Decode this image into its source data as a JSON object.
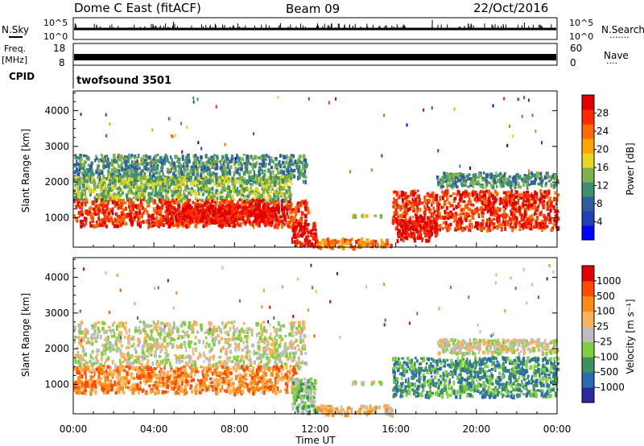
{
  "header": {
    "station": "Dome C East (fitACF)",
    "beam": "Beam 09",
    "date": "22/Oct/2016"
  },
  "top_panels": {
    "sky": {
      "label": "N.Sky",
      "ticks_left": [
        "10^5",
        "10^0"
      ],
      "ticks_right": [
        "10^5",
        "10^0"
      ],
      "right_label": "N.Search",
      "right_marker": "·······"
    },
    "freq": {
      "label_line1": "Freq.",
      "label_line2": "[MHz]",
      "ticks_left": [
        "18",
        "8"
      ],
      "ticks_right": [
        "60",
        "0"
      ],
      "right_label": "Nave",
      "right_marker": "····"
    },
    "cpid": {
      "label": "CPID",
      "value": "twofsound 3501"
    }
  },
  "chart_data": [
    {
      "type": "heatmap",
      "name": "power",
      "ylabel": "Slant Range [km]",
      "yticks": [
        "4000",
        "3000",
        "2000",
        "1000"
      ],
      "ylim": [
        180,
        4550
      ],
      "colorbar": {
        "label": "Power [dB]",
        "ticks": [
          "28",
          "24",
          "20",
          "16",
          "12",
          "8",
          "4"
        ],
        "range": [
          0,
          32
        ],
        "colors": [
          "#0000ff",
          "#1f3fb7",
          "#2f5ea0",
          "#3f8f6f",
          "#7fb24f",
          "#e6d81f",
          "#ffa500",
          "#ff6a00",
          "#ff2a00",
          "#e00000"
        ]
      },
      "regions": [
        {
          "t": [
            0.0,
            11.5
          ],
          "r": [
            2050,
            2800
          ],
          "level": 3
        },
        {
          "t": [
            0.0,
            10.8
          ],
          "r": [
            1500,
            2200
          ],
          "level": 4
        },
        {
          "t": [
            0.0,
            11.6
          ],
          "r": [
            800,
            1550
          ],
          "level": 8
        },
        {
          "t": [
            4.5,
            10.5
          ],
          "r": [
            900,
            1400
          ],
          "level": 9
        },
        {
          "t": [
            10.8,
            12.0
          ],
          "r": [
            250,
            900
          ],
          "level": 9
        },
        {
          "t": [
            12.0,
            15.8
          ],
          "r": [
            200,
            450
          ],
          "level": 7
        },
        {
          "t": [
            13.8,
            15.3
          ],
          "r": [
            1100,
            1100
          ],
          "level": 5
        },
        {
          "t": [
            15.8,
            24.0
          ],
          "r": [
            700,
            1800
          ],
          "level": 8
        },
        {
          "t": [
            16.0,
            18.0
          ],
          "r": [
            400,
            1000
          ],
          "level": 9
        },
        {
          "t": [
            18.0,
            24.0
          ],
          "r": [
            1900,
            2300
          ],
          "level": 3
        }
      ]
    },
    {
      "type": "heatmap",
      "name": "velocity",
      "xlabel": "Time UT",
      "ylabel": "Slant Range [km]",
      "xticks": [
        "00:00",
        "04:00",
        "08:00",
        "12:00",
        "16:00",
        "20:00",
        "00:00"
      ],
      "xlim": [
        0,
        24
      ],
      "yticks": [
        "4000",
        "3000",
        "2000",
        "1000"
      ],
      "ylim": [
        180,
        4550
      ],
      "colorbar": {
        "label": "Velocity [m s⁻¹]",
        "ticks": [
          "1000",
          "500",
          "100",
          "25",
          "-25",
          "-100",
          "-500",
          "-1000"
        ],
        "colors": [
          "#2a2aa0",
          "#2a6ab0",
          "#3f8f5f",
          "#7fcf3f",
          "#bdbdbd",
          "#ffb05a",
          "#ff8c10",
          "#ff4a00",
          "#e00000"
        ]
      },
      "regions": [
        {
          "t": [
            0.0,
            11.5
          ],
          "r": [
            1500,
            2800
          ],
          "class": 4
        },
        {
          "t": [
            0.0,
            11.0
          ],
          "r": [
            800,
            1550
          ],
          "class": 6
        },
        {
          "t": [
            10.8,
            12.0
          ],
          "r": [
            250,
            1200
          ],
          "class": 3
        },
        {
          "t": [
            12.0,
            15.8
          ],
          "r": [
            200,
            450
          ],
          "class": 5
        },
        {
          "t": [
            13.8,
            15.3
          ],
          "r": [
            1100,
            1100
          ],
          "class": 4
        },
        {
          "t": [
            15.8,
            24.0
          ],
          "r": [
            700,
            1800
          ],
          "class": 2
        },
        {
          "t": [
            18.0,
            24.0
          ],
          "r": [
            1900,
            2300
          ],
          "class": 4
        }
      ]
    }
  ]
}
